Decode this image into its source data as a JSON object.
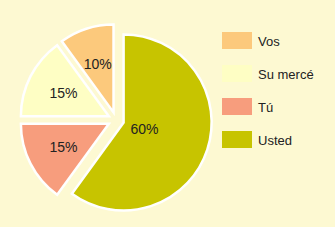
{
  "chart_data": {
    "type": "pie",
    "categories": [
      "Vos",
      "Su mercé",
      "Tú",
      "Usted"
    ],
    "values": [
      10,
      15,
      15,
      60
    ],
    "value_labels": [
      "10%",
      "15%",
      "15%",
      "60%"
    ],
    "colors": [
      "#fcc97c",
      "#fefec4",
      "#f79d7d",
      "#c7c400"
    ],
    "data_labels": true,
    "legend": "right"
  }
}
